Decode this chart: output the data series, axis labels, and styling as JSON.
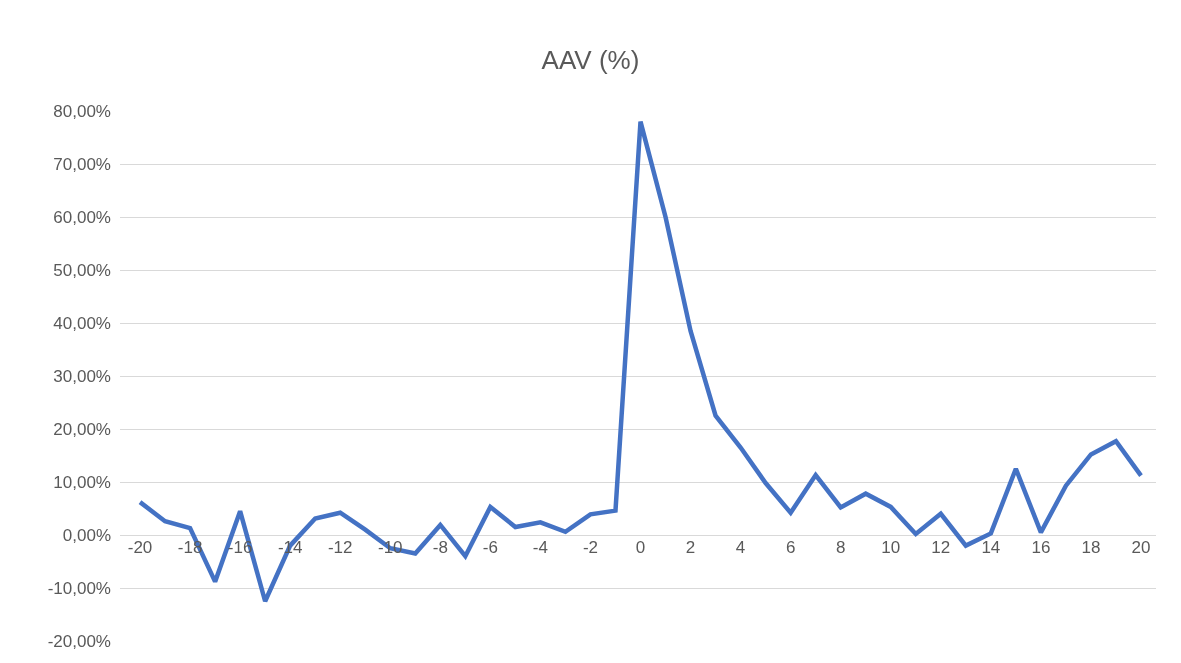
{
  "chart_data": {
    "type": "line",
    "title": "AAV (%)",
    "x": [
      -20,
      -19,
      -18,
      -17,
      -16,
      -15,
      -14,
      -13,
      -12,
      -11,
      -10,
      -9,
      -8,
      -7,
      -6,
      -5,
      -4,
      -3,
      -2,
      -1,
      0,
      1,
      2,
      3,
      4,
      5,
      6,
      7,
      8,
      9,
      10,
      11,
      12,
      13,
      14,
      15,
      16,
      17,
      18,
      19,
      20
    ],
    "series": [
      {
        "color": "#4472c4",
        "values": [
          6.2,
          2.6,
          1.3,
          -8.8,
          4.5,
          -12.5,
          -2.0,
          3.1,
          4.2,
          1.0,
          -2.5,
          -3.5,
          1.9,
          -4.0,
          5.3,
          1.5,
          2.4,
          0.6,
          3.9,
          4.6,
          78.0,
          60.0,
          38.5,
          22.5,
          16.5,
          9.8,
          4.2,
          11.3,
          5.2,
          7.8,
          5.3,
          0.2,
          4.0,
          -2.0,
          0.3,
          12.5,
          0.5,
          9.3,
          15.2,
          17.7,
          11.2
        ]
      }
    ],
    "xlim": [
      -20.8,
      20.6
    ],
    "xticks": [
      -20,
      -18,
      -16,
      -14,
      -12,
      -10,
      -8,
      -6,
      -4,
      -2,
      0,
      2,
      4,
      6,
      8,
      10,
      12,
      14,
      16,
      18,
      20
    ],
    "ylim": [
      -20,
      80
    ],
    "yticks": [
      {
        "value": -20,
        "label": "-20,00%"
      },
      {
        "value": -10,
        "label": "-10,00%"
      },
      {
        "value": 0,
        "label": "0,00%"
      },
      {
        "value": 10,
        "label": "10,00%"
      },
      {
        "value": 20,
        "label": "20,00%"
      },
      {
        "value": 30,
        "label": "30,00%"
      },
      {
        "value": 40,
        "label": "40,00%"
      },
      {
        "value": 50,
        "label": "50,00%"
      },
      {
        "value": 60,
        "label": "60,00%"
      },
      {
        "value": 70,
        "label": "70,00%"
      },
      {
        "value": 80,
        "label": "80,00%"
      }
    ],
    "grid": "y",
    "marker": "none",
    "line_style": "solid"
  }
}
